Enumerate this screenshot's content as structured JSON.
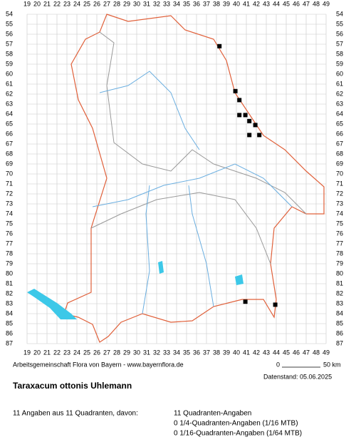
{
  "grid": {
    "columns": [
      19,
      20,
      21,
      22,
      23,
      24,
      25,
      26,
      27,
      28,
      29,
      30,
      31,
      32,
      33,
      34,
      35,
      36,
      37,
      38,
      39,
      40,
      41,
      42,
      43,
      44,
      45,
      46,
      47,
      48,
      49
    ],
    "rows": [
      54,
      55,
      56,
      57,
      58,
      59,
      60,
      61,
      62,
      63,
      64,
      65,
      66,
      67,
      68,
      69,
      70,
      71,
      72,
      73,
      74,
      75,
      76,
      77,
      78,
      79,
      80,
      81,
      82,
      83,
      84,
      85,
      86,
      87
    ]
  },
  "occurrences": [
    {
      "x": 38.3,
      "y": 57.2
    },
    {
      "x": 39.9,
      "y": 61.7
    },
    {
      "x": 40.3,
      "y": 62.6
    },
    {
      "x": 40.3,
      "y": 64.1
    },
    {
      "x": 40.9,
      "y": 64.1
    },
    {
      "x": 41.3,
      "y": 64.7
    },
    {
      "x": 41.9,
      "y": 65.1
    },
    {
      "x": 41.3,
      "y": 66.1
    },
    {
      "x": 42.3,
      "y": 66.1
    },
    {
      "x": 40.9,
      "y": 82.8
    },
    {
      "x": 43.9,
      "y": 83.1
    }
  ],
  "footer": {
    "credit": "Arbeitsgemeinschaft Flora von Bayern - www.bayernflora.de",
    "scale_start": "0",
    "scale_end": "50 km",
    "date": "Datenstand: 05.06.2025"
  },
  "title": "Taraxacum ottonis Uhlemann",
  "summary": {
    "left": "11 Angaben aus 11 Quadranten, davon:",
    "right": [
      "11 Quadranten-Angaben",
      "0 1/4-Quadranten-Angaben (1/16 MTB)",
      "0 1/16-Quadranten-Angaben (1/64 MTB)"
    ]
  }
}
